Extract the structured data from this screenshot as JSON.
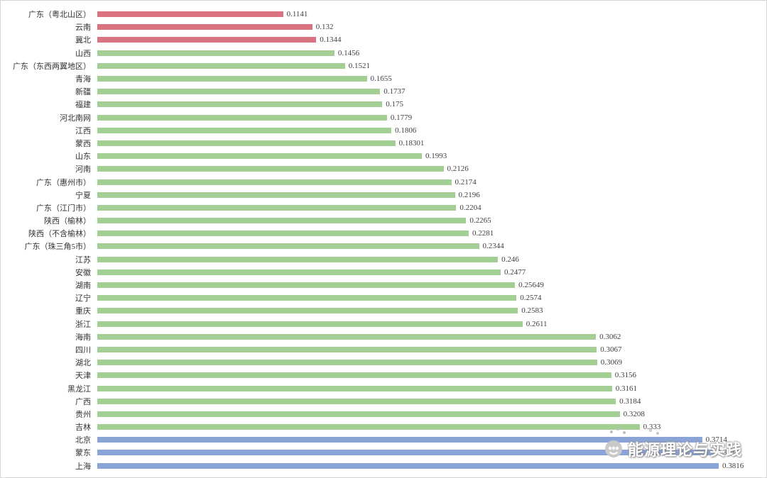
{
  "chart_data": {
    "type": "bar",
    "orientation": "horizontal",
    "title": "",
    "xlabel": "",
    "ylabel": "",
    "axes_visible": false,
    "grid": false,
    "legend": null,
    "xlim": [
      0,
      0.3816
    ],
    "categories": [
      "广东（粤北山区）",
      "云南",
      "冀北",
      "山西",
      "广东（东西两翼地区）",
      "青海",
      "新疆",
      "福建",
      "河北南网",
      "江西",
      "蒙西",
      "山东",
      "河南",
      "广东（惠州市）",
      "宁夏",
      "广东（江门市）",
      "陕西（榆林）",
      "陕西（不含榆林）",
      "广东（珠三角5市）",
      "江苏",
      "安徽",
      "湖南",
      "辽宁",
      "重庆",
      "浙江",
      "海南",
      "四川",
      "湖北",
      "天津",
      "黑龙江",
      "广西",
      "贵州",
      "吉林",
      "北京",
      "蒙东",
      "上海"
    ],
    "values": [
      "0.1141",
      "0.132",
      "0.1344",
      "0.1456",
      "0.1521",
      "0.1655",
      "0.1737",
      "0.175",
      "0.1779",
      "0.1806",
      "0.18301",
      "0.1993",
      "0.2126",
      "0.2174",
      "0.2196",
      "0.2204",
      "0.2265",
      "0.2281",
      "0.2344",
      "0.246",
      "0.2477",
      "0.25649",
      "0.2574",
      "0.2583",
      "0.2611",
      "0.3062",
      "0.3067",
      "0.3069",
      "0.3156",
      "0.3161",
      "0.3184",
      "0.3208",
      "0.333",
      "0.3714",
      "0.3784",
      "0.3816"
    ],
    "bar_colors": [
      "red",
      "red",
      "red",
      "green",
      "green",
      "green",
      "green",
      "green",
      "green",
      "green",
      "green",
      "green",
      "green",
      "green",
      "green",
      "green",
      "green",
      "green",
      "green",
      "green",
      "green",
      "green",
      "green",
      "green",
      "green",
      "green",
      "green",
      "green",
      "green",
      "green",
      "green",
      "green",
      "green",
      "blue",
      "blue",
      "blue"
    ],
    "palette": {
      "red": "#d9737f",
      "green": "#a4cf94",
      "blue": "#8ba4d6"
    }
  },
  "watermark": {
    "text": "能源理论与实践"
  }
}
